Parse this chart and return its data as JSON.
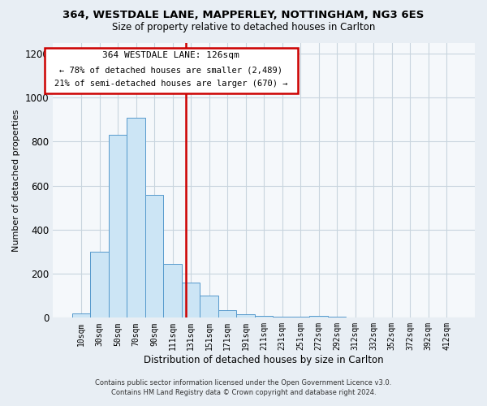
{
  "title": "364, WESTDALE LANE, MAPPERLEY, NOTTINGHAM, NG3 6ES",
  "subtitle": "Size of property relative to detached houses in Carlton",
  "xlabel": "Distribution of detached houses by size in Carlton",
  "ylabel": "Number of detached properties",
  "bar_labels": [
    "10sqm",
    "30sqm",
    "50sqm",
    "70sqm",
    "90sqm",
    "111sqm",
    "131sqm",
    "151sqm",
    "171sqm",
    "191sqm",
    "211sqm",
    "231sqm",
    "251sqm",
    "272sqm",
    "292sqm",
    "312sqm",
    "332sqm",
    "352sqm",
    "372sqm",
    "392sqm",
    "412sqm"
  ],
  "bar_values": [
    20,
    300,
    830,
    910,
    560,
    245,
    160,
    100,
    35,
    15,
    10,
    5,
    5,
    10,
    5,
    0,
    0,
    0,
    0,
    0,
    0
  ],
  "bar_color": "#cce5f5",
  "bar_edge_color": "#5599cc",
  "vline_color": "#cc0000",
  "annotation_title": "364 WESTDALE LANE: 126sqm",
  "annotation_line1": "← 78% of detached houses are smaller (2,489)",
  "annotation_line2": "21% of semi-detached houses are larger (670) →",
  "annotation_box_color": "#cc0000",
  "ylim": [
    0,
    1250
  ],
  "yticks": [
    0,
    200,
    400,
    600,
    800,
    1000,
    1200
  ],
  "footer1": "Contains HM Land Registry data © Crown copyright and database right 2024.",
  "footer2": "Contains public sector information licensed under the Open Government Licence v3.0.",
  "background_color": "#e8eef4",
  "plot_bg_color": "#f5f8fb",
  "grid_color": "#c8d4de"
}
